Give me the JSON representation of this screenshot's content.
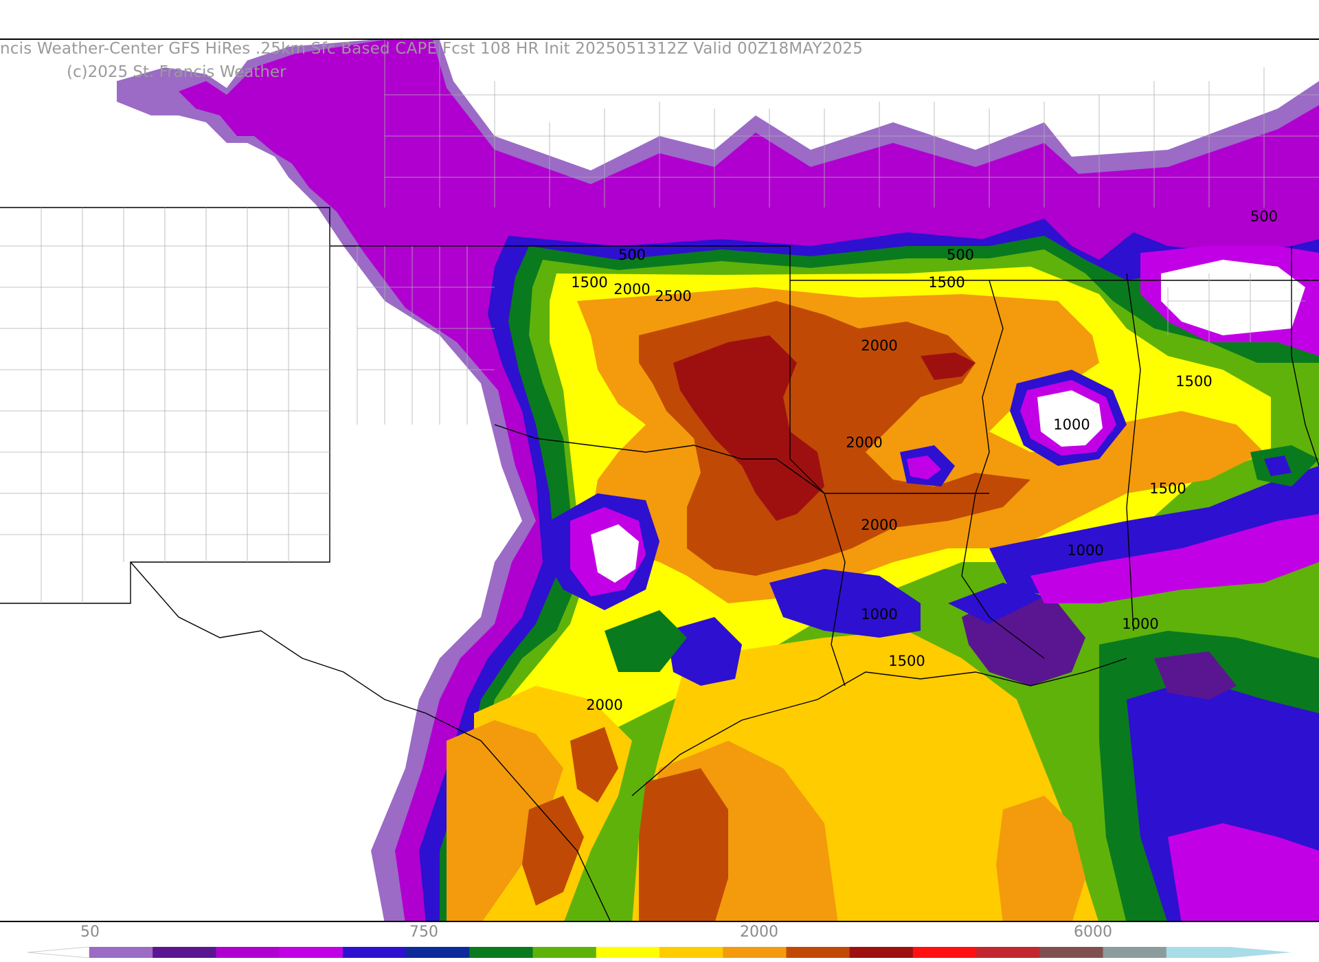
{
  "title": "ncis Weather-Center GFS HiRes .25km Sfc Based CAPE  Fcst 108 HR Init 2025051312Z  Valid 00Z18MAY2025",
  "copyright": "(c)2025 St. Francis Weather",
  "contour_labels": [
    "500",
    "1500",
    "2000",
    "2500",
    "500",
    "1500",
    "2000",
    "2000",
    "1500",
    "1000",
    "1500",
    "2000",
    "1000",
    "1000",
    "1000",
    "1500",
    "2000",
    "500"
  ],
  "colorbar": {
    "tick_labels": [
      "50",
      "750",
      "2000",
      "6000"
    ],
    "colors": [
      "#9b6bc6",
      "#5a1690",
      "#b000cf",
      "#c200e6",
      "#2e10d0",
      "#0c2a9a",
      "#0a7a1e",
      "#5fb20a",
      "#ffff00",
      "#ffcc00",
      "#f39b0c",
      "#c04a05",
      "#9e1010",
      "#ff1010",
      "#c3262e",
      "#805050",
      "#8c9c9c",
      "#a8dce8"
    ]
  },
  "map_colors": {
    "light_purple": "#9b6bc6",
    "dark_purple": "#5a1690",
    "magenta": "#c200e6",
    "blue": "#2e10d0",
    "dark_green": "#0a7a1e",
    "light_green": "#5fb20a",
    "yellow": "#ffff00",
    "gold": "#ffcc00",
    "orange": "#f39b0c",
    "rust": "#c04a05",
    "dark_red": "#9e1010"
  }
}
